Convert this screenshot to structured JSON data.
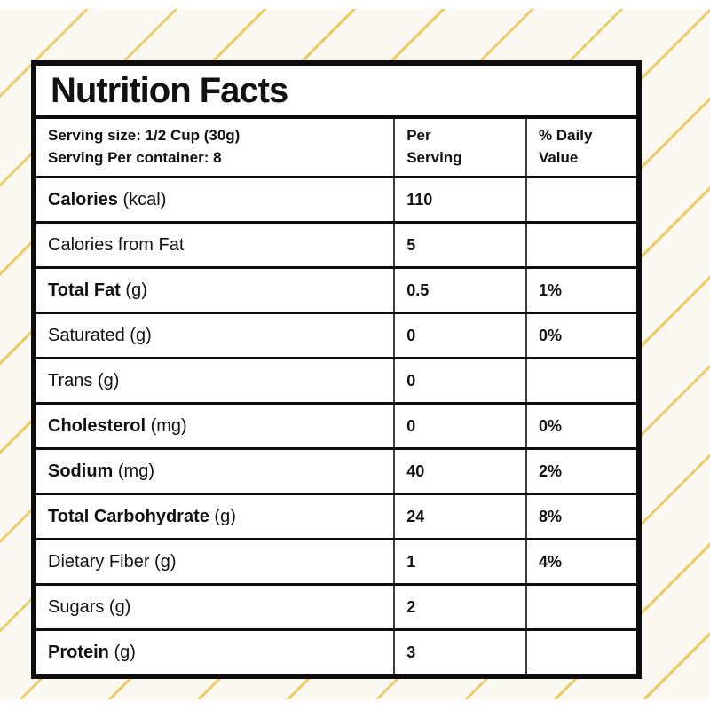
{
  "background": {
    "panel_color": "#faf8f0",
    "stripe_color": "#edcb67",
    "stripe_direction": "diagonal-bottomleft-to-topright"
  },
  "label": {
    "title": "Nutrition Facts",
    "serving": {
      "line1": "Serving size: 1/2 Cup (30g)",
      "line2": "Serving Per container: 8",
      "col_per_serving": "Per\nServing",
      "col_daily_value": "% Daily\nValue"
    },
    "rows": [
      {
        "bold": "Calories",
        "rest": " (kcal)",
        "value": "110",
        "dv": ""
      },
      {
        "bold": "",
        "rest": "Calories from Fat",
        "value": "5",
        "dv": ""
      },
      {
        "bold": "Total Fat",
        "rest": " (g)",
        "value": "0.5",
        "dv": "1%"
      },
      {
        "bold": "",
        "rest": "Saturated (g)",
        "value": "0",
        "dv": "0%"
      },
      {
        "bold": "",
        "rest": "Trans (g)",
        "value": "0",
        "dv": ""
      },
      {
        "bold": "Cholesterol",
        "rest": " (mg)",
        "value": "0",
        "dv": "0%"
      },
      {
        "bold": "Sodium",
        "rest": " (mg)",
        "value": "40",
        "dv": "2%"
      },
      {
        "bold": "Total Carbohydrate",
        "rest": " (g)",
        "value": "24",
        "dv": "8%"
      },
      {
        "bold": "",
        "rest": "Dietary Fiber (g)",
        "value": "1",
        "dv": "4%"
      },
      {
        "bold": "",
        "rest": "Sugars (g)",
        "value": "2",
        "dv": ""
      },
      {
        "bold": "Protein",
        "rest": " (g)",
        "value": "3",
        "dv": ""
      }
    ]
  }
}
